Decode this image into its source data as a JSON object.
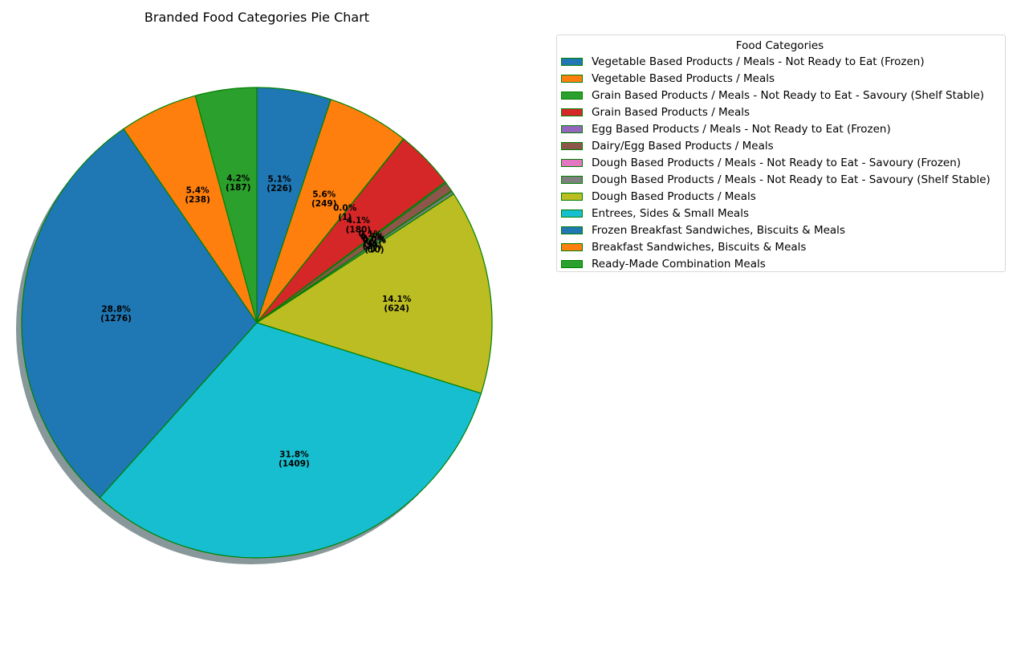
{
  "chart_data": {
    "type": "pie",
    "title": "Branded Food Categories Pie Chart",
    "legend_title": "Food Categories",
    "legend_placement": "top-right",
    "edge_color": "#008000",
    "shadow": true,
    "start_angle_deg": 90,
    "direction": "clockwise",
    "slices": [
      {
        "label": "Vegetable Based Products / Meals - Not Ready to Eat (Frozen)",
        "value": 226,
        "color": "#1f77b4"
      },
      {
        "label": "Vegetable Based Products / Meals",
        "value": 249,
        "color": "#ff7f0e"
      },
      {
        "label": "Grain Based Products / Meals - Not Ready to Eat - Savoury (Shelf Stable)",
        "value": 1,
        "color": "#2ca02c"
      },
      {
        "label": "Grain Based Products / Meals",
        "value": 180,
        "color": "#d62728"
      },
      {
        "label": "Egg Based Products / Meals - Not Ready to Eat (Frozen)",
        "value": 4,
        "color": "#9467bd"
      },
      {
        "label": "Dairy/Egg Based Products / Meals",
        "value": 29,
        "color": "#8c564b"
      },
      {
        "label": "Dough Based Products / Meals - Not Ready to Eat - Savoury (Frozen)",
        "value": 1,
        "color": "#e377c2"
      },
      {
        "label": "Dough Based Products / Meals - Not Ready to Eat - Savoury (Shelf Stable)",
        "value": 10,
        "color": "#7f7f7f"
      },
      {
        "label": "Dough Based Products / Meals",
        "value": 624,
        "color": "#bcbd22"
      },
      {
        "label": "Entrees, Sides & Small Meals",
        "value": 1409,
        "color": "#17becf"
      },
      {
        "label": "Frozen Breakfast Sandwiches, Biscuits & Meals",
        "value": 1276,
        "color": "#1f77b4"
      },
      {
        "label": "Breakfast Sandwiches, Biscuits & Meals",
        "value": 238,
        "color": "#ff7f0e"
      },
      {
        "label": "Ready-Made Combination Meals",
        "value": 187,
        "color": "#2ca02c"
      }
    ],
    "slice_labels": [
      "5.1%\n(226)",
      "5.6%\n(249)",
      "0.0%\n(1)",
      "4.1%\n(180)",
      "0.1%\n(4)",
      "0.7%\n(29)",
      "0.0%\n(1)",
      "0.2%\n(10)",
      "14.1%\n(624)",
      "31.8%\n(1409)",
      "28.8%\n(1276)",
      "5.4%\n(238)",
      "4.2%\n(187)"
    ]
  }
}
